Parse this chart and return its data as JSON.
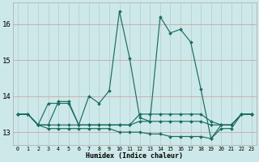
{
  "xlabel": "Humidex (Indice chaleur)",
  "x_ticks": [
    0,
    1,
    2,
    3,
    4,
    5,
    6,
    7,
    8,
    9,
    10,
    11,
    12,
    13,
    14,
    15,
    16,
    17,
    18,
    19,
    20,
    21,
    22,
    23
  ],
  "ylim": [
    12.65,
    16.6
  ],
  "y_ticks": [
    13,
    14,
    15,
    16
  ],
  "background_color": "#cde8e8",
  "grid_color_h": "#c8a8a8",
  "grid_color_v": "#b8d0d0",
  "line_color": "#1a6e60",
  "series": [
    [
      13.5,
      13.5,
      13.2,
      13.8,
      13.8,
      13.8,
      13.2,
      14.0,
      13.8,
      14.15,
      16.35,
      15.05,
      13.4,
      13.3,
      16.2,
      15.75,
      15.85,
      15.5,
      14.2,
      12.82,
      13.2,
      13.2,
      13.5,
      13.5
    ],
    [
      13.5,
      13.5,
      13.2,
      13.2,
      13.85,
      13.85,
      13.2,
      13.2,
      13.2,
      13.2,
      13.2,
      13.2,
      13.5,
      13.5,
      13.5,
      13.5,
      13.5,
      13.5,
      13.5,
      13.3,
      13.2,
      13.2,
      13.5,
      13.5
    ],
    [
      13.5,
      13.5,
      13.2,
      13.2,
      13.2,
      13.2,
      13.2,
      13.2,
      13.2,
      13.2,
      13.2,
      13.2,
      13.3,
      13.3,
      13.3,
      13.3,
      13.3,
      13.3,
      13.3,
      13.2,
      13.2,
      13.2,
      13.5,
      13.5
    ],
    [
      13.5,
      13.5,
      13.2,
      13.1,
      13.1,
      13.1,
      13.1,
      13.1,
      13.1,
      13.1,
      13.0,
      13.0,
      13.0,
      12.95,
      12.95,
      12.88,
      12.88,
      12.88,
      12.88,
      12.82,
      13.1,
      13.1,
      13.5,
      13.5
    ]
  ]
}
